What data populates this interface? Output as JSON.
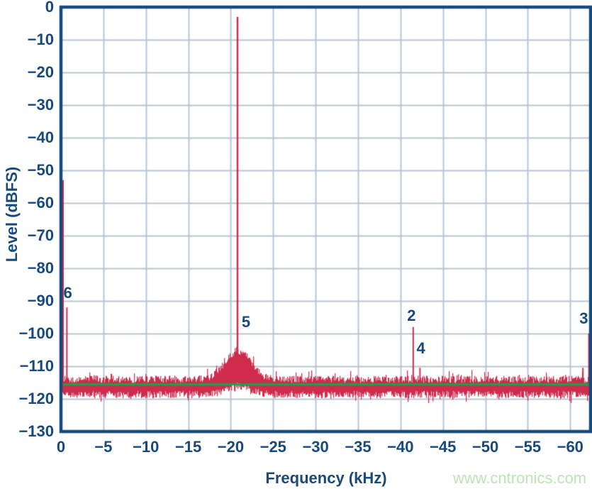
{
  "chart_data": {
    "type": "line",
    "title": "",
    "xlabel": "Frequency (kHz)",
    "ylabel": "Level (dBFS)",
    "xlim": [
      0,
      62.4
    ],
    "ylim": [
      -130,
      0
    ],
    "x_ticks": [
      0,
      5,
      10,
      15,
      20,
      25,
      30,
      35,
      40,
      45,
      50,
      55,
      60
    ],
    "y_ticks": [
      0,
      -10,
      -20,
      -30,
      -40,
      -50,
      -60,
      -70,
      -80,
      -90,
      -100,
      -110,
      -120,
      -130
    ],
    "grid": true,
    "legend": "none",
    "colors": {
      "trace": "#cf2c4c",
      "reference_line": "#1fa04a",
      "axis": "#174a7b",
      "grid": "#b9c5d3",
      "watermark": "#bce5b6",
      "background": "#ffffff"
    },
    "series": [
      {
        "name": "fft-spectrum",
        "color": "#cf2c4c",
        "noise_band_top_dbfs": -114.0,
        "noise_band_bottom_dbfs": -118.7,
        "noise_spike_extra_db": 2.0,
        "skirt": {
          "center_khz": 20.8,
          "sigma_khz": 1.5,
          "rise_db": 8.7
        },
        "peaks": [
          {
            "freq_khz": 0.25,
            "level_dbfs": -53,
            "harmonic": ""
          },
          {
            "freq_khz": 0.7,
            "level_dbfs": -92,
            "harmonic": "6"
          },
          {
            "freq_khz": 20.8,
            "level_dbfs": -3,
            "harmonic": "5"
          },
          {
            "freq_khz": 41.5,
            "level_dbfs": -98,
            "harmonic": "2"
          },
          {
            "freq_khz": 42.3,
            "level_dbfs": -110.5,
            "harmonic": "4"
          },
          {
            "freq_khz": 61.5,
            "level_dbfs": -110.5,
            "harmonic": ""
          },
          {
            "freq_khz": 62.2,
            "level_dbfs": -100,
            "harmonic": "3"
          }
        ]
      },
      {
        "name": "reference-level",
        "color": "#1fa04a",
        "level_dbfs": -115.6
      }
    ],
    "annotations": [
      {
        "text": "6",
        "freq_khz": 0.8,
        "level_dbfs": -87.5
      },
      {
        "text": "5",
        "freq_khz": 21.8,
        "level_dbfs": -96.5
      },
      {
        "text": "2",
        "freq_khz": 41.3,
        "level_dbfs": -94.5
      },
      {
        "text": "4",
        "freq_khz": 42.4,
        "level_dbfs": -104.5
      },
      {
        "text": "3",
        "freq_khz": 61.6,
        "level_dbfs": -95.5
      }
    ],
    "watermark": "www.cntronics.com"
  }
}
